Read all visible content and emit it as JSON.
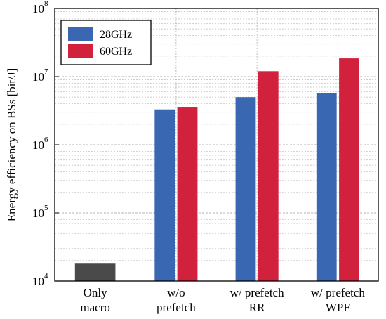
{
  "chart_data": {
    "type": "bar",
    "title": "",
    "xlabel": "",
    "ylabel": "Energy efficiency on BSs [bit/J]",
    "yscale": "log",
    "ylim": [
      10000,
      100000000
    ],
    "grid": true,
    "legend_position": "top-left",
    "categories": [
      [
        "Only",
        "macro"
      ],
      [
        "w/o",
        "prefetch"
      ],
      [
        "w/ prefetch",
        "RR"
      ],
      [
        "w/ prefetch",
        "WPF"
      ]
    ],
    "y_ticks": [
      {
        "base": "10",
        "exp": "4",
        "value": 10000
      },
      {
        "base": "10",
        "exp": "5",
        "value": 100000
      },
      {
        "base": "10",
        "exp": "6",
        "value": 1000000
      },
      {
        "base": "10",
        "exp": "7",
        "value": 10000000
      },
      {
        "base": "10",
        "exp": "8",
        "value": 100000000
      }
    ],
    "series": [
      {
        "name": "28GHz",
        "color": "#3a67b2",
        "values": [
          null,
          3300000,
          5000000,
          5700000
        ]
      },
      {
        "name": "60GHz",
        "color": "#d2213c",
        "values": [
          null,
          3600000,
          12000000,
          18500000
        ]
      }
    ],
    "baseline": {
      "color": "#4a4a4a",
      "values": [
        18000,
        null,
        null,
        null
      ]
    }
  }
}
